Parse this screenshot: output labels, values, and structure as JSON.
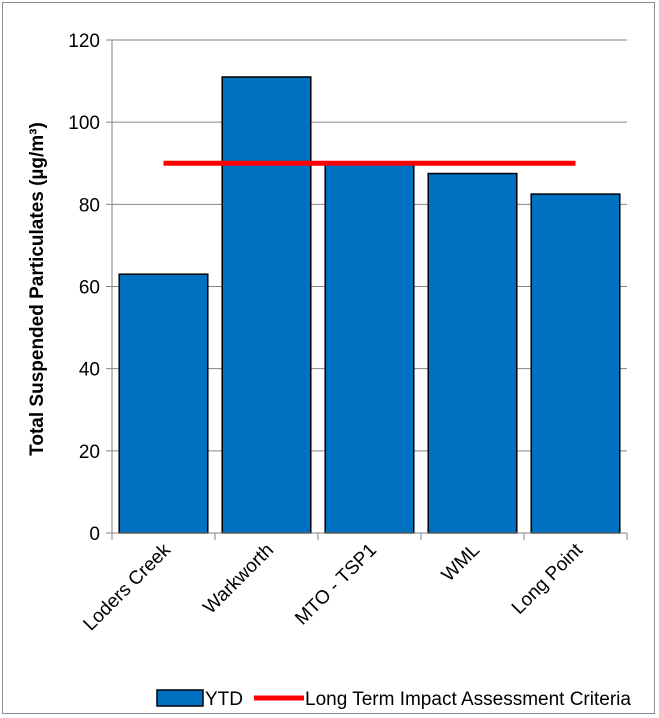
{
  "chart_data": {
    "type": "bar",
    "title": "",
    "xlabel": "",
    "ylabel": "Total Suspended Particulates (µg/m³)",
    "categories": [
      "Loders Creek",
      "Warkworth",
      "MTO - TSP1",
      "WML",
      "Long Point"
    ],
    "series": [
      {
        "name": "YTD",
        "type": "bar",
        "values": [
          63,
          111,
          90,
          87.5,
          82.5
        ],
        "color": "#0070c0"
      },
      {
        "name": "Long Term Impact Assessment Criteria",
        "type": "line",
        "values": [
          90,
          90,
          90,
          90,
          90
        ],
        "color": "#ff0000"
      }
    ],
    "ylim": [
      0,
      120
    ],
    "yticks": [
      0,
      20,
      40,
      60,
      80,
      100,
      120
    ],
    "grid": true,
    "legend_position": "bottom"
  }
}
